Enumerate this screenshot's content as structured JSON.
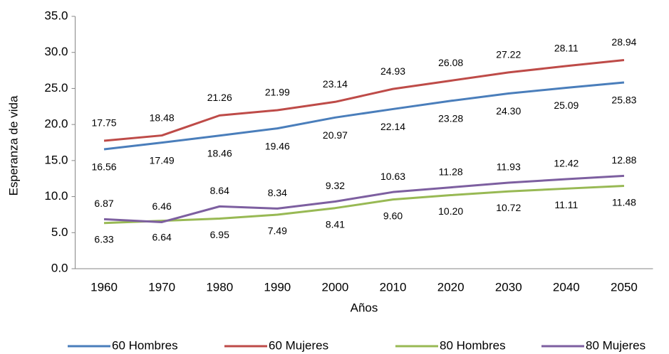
{
  "chart_data": {
    "type": "line",
    "categories": [
      "1960",
      "1970",
      "1980",
      "1990",
      "2000",
      "2010",
      "2020",
      "2030",
      "2040",
      "2050"
    ],
    "x_label": "Años",
    "y_label": "Esperanza de vida",
    "ylim": [
      0,
      35
    ],
    "yticks": [
      {
        "value": 0,
        "label": "0.0"
      },
      {
        "value": 5,
        "label": "5.0"
      },
      {
        "value": 10,
        "label": "10.0"
      },
      {
        "value": 15,
        "label": "15.0"
      },
      {
        "value": 20,
        "label": "20.0"
      },
      {
        "value": 25,
        "label": "25.0"
      },
      {
        "value": 30,
        "label": "30.0"
      },
      {
        "value": 35,
        "label": "35.0"
      }
    ],
    "grid": false,
    "legend": "bottom",
    "series": [
      {
        "name": "60 Hombres",
        "color": "#4a7ebb",
        "values": [
          16.56,
          17.49,
          18.46,
          19.46,
          20.97,
          22.14,
          23.28,
          24.3,
          25.09,
          25.83
        ],
        "value_labels": [
          "16.56",
          "17.49",
          "18.46",
          "19.46",
          "20.97",
          "22.14",
          "23.28",
          "24.30",
          "25.09",
          "25.83"
        ]
      },
      {
        "name": "60 Mujeres",
        "color": "#be4b48",
        "values": [
          17.75,
          18.48,
          21.26,
          21.99,
          23.14,
          24.93,
          26.08,
          27.22,
          28.11,
          28.94
        ],
        "value_labels": [
          "17.75",
          "18.48",
          "21.26",
          "21.99",
          "23.14",
          "24.93",
          "26.08",
          "27.22",
          "28.11",
          "28.94"
        ]
      },
      {
        "name": "80 Hombres",
        "color": "#98b954",
        "values": [
          6.33,
          6.64,
          6.95,
          7.49,
          8.41,
          9.6,
          10.2,
          10.72,
          11.11,
          11.48
        ],
        "value_labels": [
          "6.33",
          "6.64",
          "6.95",
          "7.49",
          "8.41",
          "9.60",
          "10.20",
          "10.72",
          "11.11",
          "11.48"
        ]
      },
      {
        "name": "80 Mujeres",
        "color": "#7d5fa0",
        "values": [
          6.87,
          6.46,
          8.64,
          8.34,
          9.32,
          10.63,
          11.28,
          11.93,
          12.42,
          12.88
        ],
        "value_labels": [
          "6.87",
          "6.46",
          "8.64",
          "8.34",
          "9.32",
          "10.63",
          "11.28",
          "11.93",
          "12.42",
          "12.88"
        ]
      }
    ]
  }
}
